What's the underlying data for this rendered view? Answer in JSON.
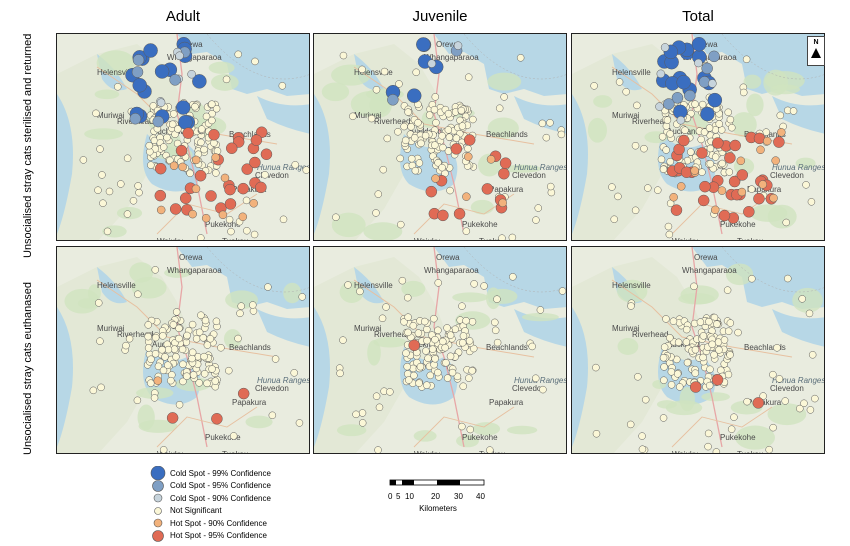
{
  "columns": [
    "Adult",
    "Juvenile",
    "Total"
  ],
  "rows": [
    "Unsocialised stray cats sterilised and returned",
    "Unsocialised stray cats euthanased"
  ],
  "places": [
    {
      "name": "Orewa"
    },
    {
      "name": "Whangaparaoa"
    },
    {
      "name": "Helensville"
    },
    {
      "name": "Muriwai"
    },
    {
      "name": "Riverhead"
    },
    {
      "name": "Auckland"
    },
    {
      "name": "Beachlands"
    },
    {
      "name": "Hunua Ranges"
    },
    {
      "name": "Clevedon"
    },
    {
      "name": "Papakura"
    },
    {
      "name": "Pukekohe"
    },
    {
      "name": "Waiuku"
    },
    {
      "name": "Tuakau"
    }
  ],
  "legend": [
    {
      "label": "Cold Spot - 99% Confidence",
      "color": "#3a6ec0",
      "size": 7
    },
    {
      "label": "Cold Spot - 95% Confidence",
      "color": "#7f9fc4",
      "size": 5.5
    },
    {
      "label": "Cold Spot - 90% Confidence",
      "color": "#c7d4dc",
      "size": 4
    },
    {
      "label": "Not Significant",
      "color": "#fbf7d7",
      "size": 3.5
    },
    {
      "label": "Hot Spot - 90% Confidence",
      "color": "#f2b27c",
      "size": 4
    },
    {
      "label": "Hot Spot - 95% Confidence",
      "color": "#e06b55",
      "size": 5.5
    }
  ],
  "scale": {
    "ticks": [
      "0",
      "5",
      "10",
      "20",
      "30",
      "40"
    ],
    "unit": "Kilometers"
  },
  "north": "N"
}
